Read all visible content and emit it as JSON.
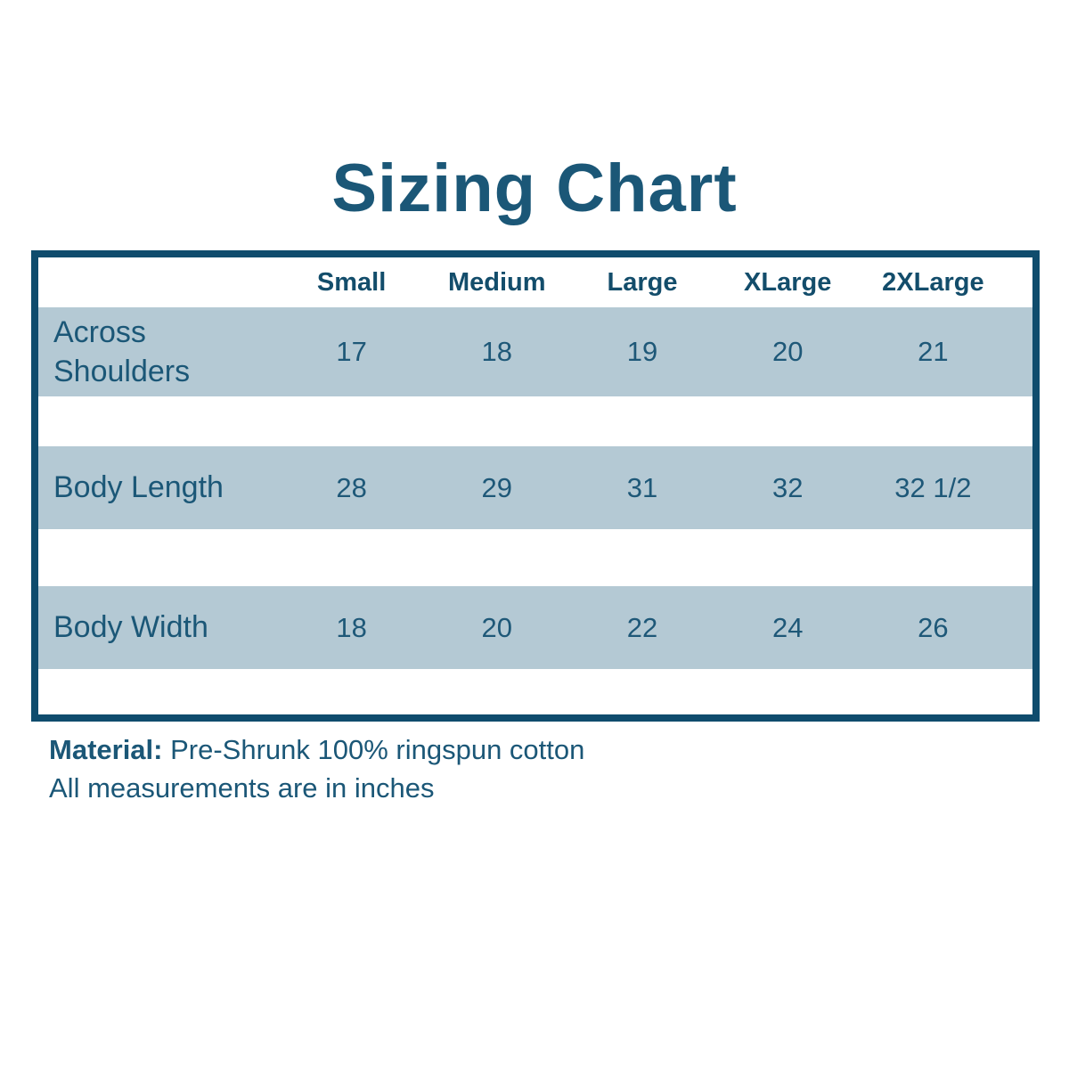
{
  "title": "Sizing Chart",
  "chart_data": {
    "type": "table",
    "columns": [
      "Small",
      "Medium",
      "Large",
      "XLarge",
      "2XLarge"
    ],
    "rows": [
      {
        "label": "Across Shoulders",
        "values": [
          "17",
          "18",
          "19",
          "20",
          "21"
        ]
      },
      {
        "label": "Body Length",
        "values": [
          "28",
          "29",
          "31",
          "32",
          "32 1/2"
        ]
      },
      {
        "label": "Body Width",
        "values": [
          "18",
          "20",
          "22",
          "24",
          "26"
        ]
      }
    ],
    "title": "Sizing Chart",
    "layout": {
      "banded_rows": true,
      "grid": false
    }
  },
  "footer": {
    "material_label": "Material:",
    "material_value": " Pre-Shrunk 100% ringspun cotton",
    "note": "All measurements are in inches"
  },
  "colors": {
    "text": "#1b5777",
    "header_text": "#134d6b",
    "border": "#0f4c6d",
    "row_background": "#b4c9d4",
    "page_background": "#ffffff"
  }
}
